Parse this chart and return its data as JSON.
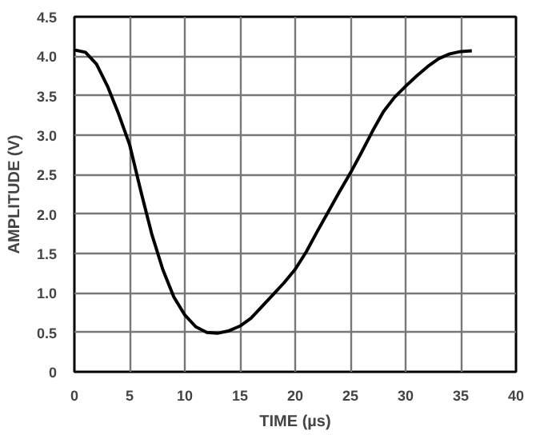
{
  "chart_data": {
    "type": "line",
    "xlabel": "TIME (µs)",
    "ylabel": "AMPLITUDE (V)",
    "x": [
      0,
      1,
      2,
      3,
      4,
      5,
      6,
      7,
      8,
      9,
      10,
      11,
      12,
      13,
      14,
      15,
      16,
      17,
      18,
      19,
      20,
      21,
      22,
      23,
      24,
      25,
      26,
      27,
      28,
      29,
      30,
      31,
      32,
      33,
      34,
      35,
      36
    ],
    "series": [
      {
        "color": "#000000",
        "values": [
          4.08,
          4.05,
          3.9,
          3.62,
          3.27,
          2.88,
          2.3,
          1.75,
          1.3,
          0.95,
          0.72,
          0.57,
          0.5,
          0.49,
          0.52,
          0.58,
          0.68,
          0.83,
          0.98,
          1.13,
          1.3,
          1.52,
          1.78,
          2.03,
          2.28,
          2.52,
          2.78,
          3.05,
          3.3,
          3.48,
          3.62,
          3.75,
          3.87,
          3.97,
          4.03,
          4.06,
          4.07
        ]
      }
    ],
    "xlim": [
      0,
      40
    ],
    "xticks": [
      0,
      5,
      10,
      15,
      20,
      25,
      30,
      35,
      40
    ],
    "ylim": [
      0,
      4.5
    ],
    "yticks": [
      0,
      {
        "value": 0.5,
        "label": "0.5"
      },
      {
        "value": 1.0,
        "label": "1.0"
      },
      {
        "value": 1.5,
        "label": "1.5"
      },
      {
        "value": 2.0,
        "label": "2.0"
      },
      {
        "value": 2.5,
        "label": "2.5"
      },
      {
        "value": 3.0,
        "label": "3.0"
      },
      {
        "value": 3.5,
        "label": "3.5"
      },
      {
        "value": 4.0,
        "label": "4.0"
      },
      {
        "value": 4.5,
        "label": "4.5"
      }
    ],
    "grid": true,
    "line_style": "solid"
  }
}
